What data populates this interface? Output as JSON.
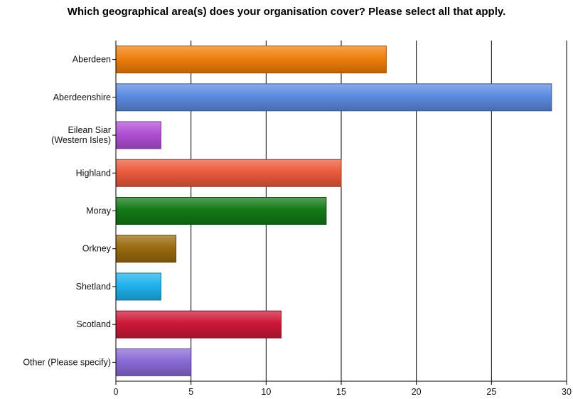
{
  "chart_data": {
    "type": "bar",
    "orientation": "horizontal",
    "title": "Which geographical area(s) does your organisation cover? Please select all that apply.",
    "categories": [
      [
        "Aberdeen"
      ],
      [
        "Aberdeenshire"
      ],
      [
        "Eilean Siar",
        "(Western Isles)"
      ],
      [
        "Highland"
      ],
      [
        "Moray"
      ],
      [
        "Orkney"
      ],
      [
        "Shetland"
      ],
      [
        "Scotland"
      ],
      [
        "Other (Please specify)"
      ]
    ],
    "values": [
      18,
      29,
      3,
      15,
      14,
      4,
      3,
      11,
      5
    ],
    "colors": [
      "#f07f0c",
      "#5b8be0",
      "#b14fd6",
      "#ec5a3c",
      "#137a16",
      "#9a6a0e",
      "#1eb2ee",
      "#cf1838",
      "#8a6ad6"
    ],
    "xlim": [
      0,
      30
    ],
    "xticks": [
      0,
      5,
      10,
      15,
      20,
      25,
      30
    ],
    "xlabel": "",
    "ylabel": "",
    "grid": true
  }
}
